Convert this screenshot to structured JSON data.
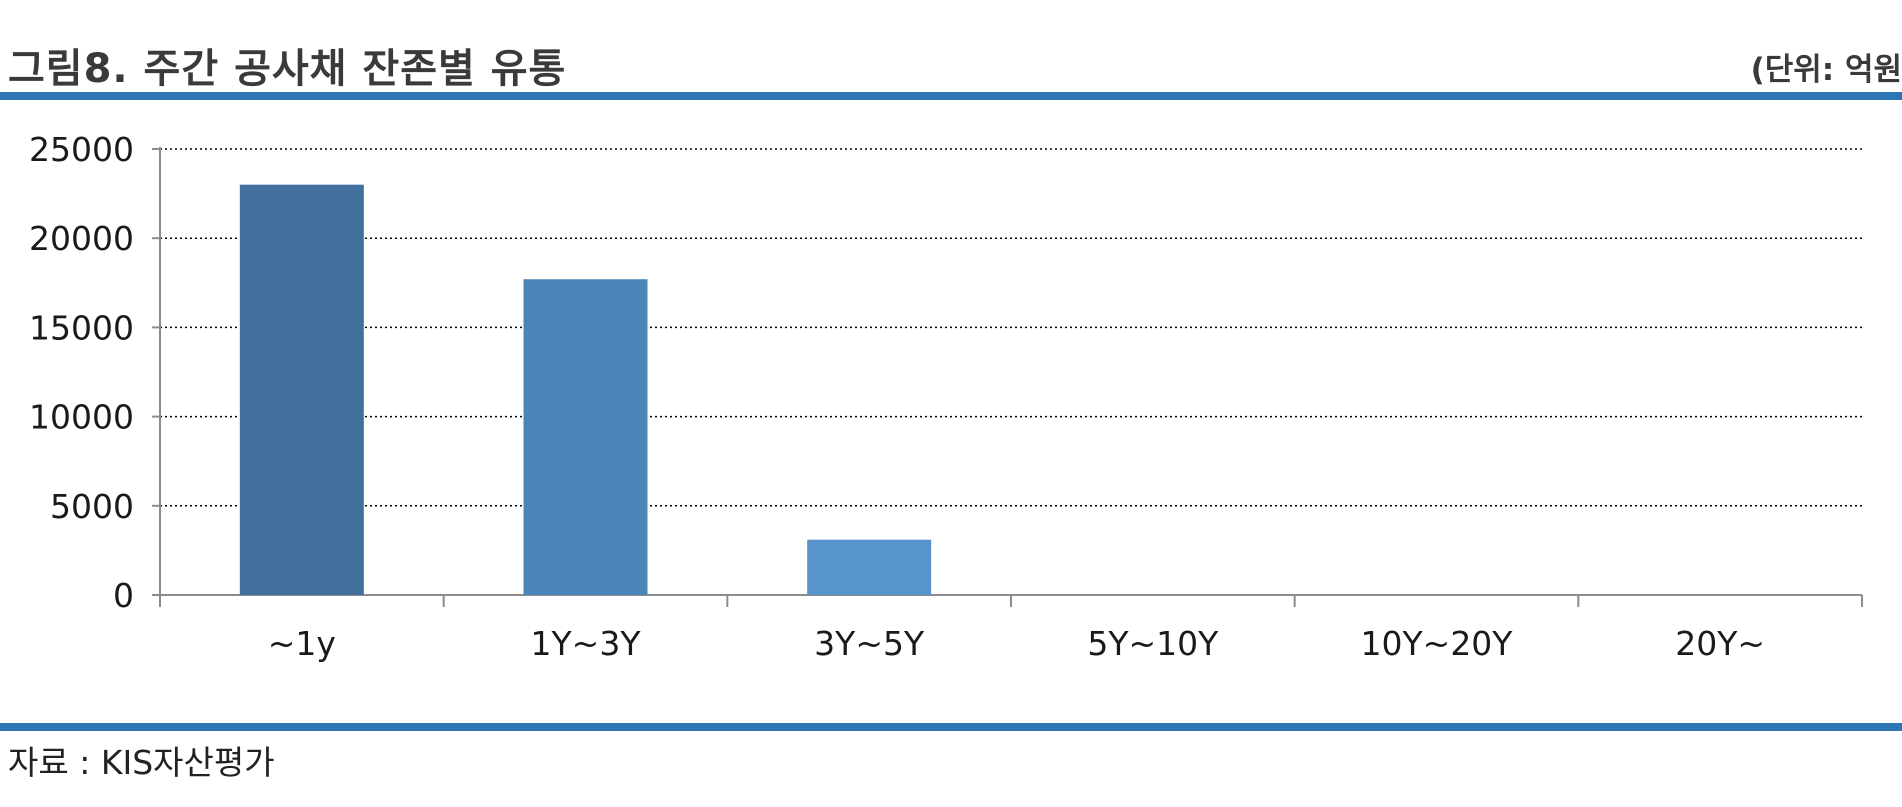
{
  "header": {
    "title": "그림8. 주간 공사채 잔존별 유통",
    "unit": "(단위: 억원"
  },
  "footer": {
    "source": "자료 : KIS자산평가"
  },
  "colors": {
    "accent_rule": "#2e75b6",
    "bars": [
      "#41709c",
      "#4a85b8",
      "#5794cb",
      "#5794cb",
      "#5794cb",
      "#5794cb"
    ],
    "grid": "#000000",
    "axis": "#8c8c8c"
  },
  "chart_data": {
    "type": "bar",
    "categories": [
      "~1y",
      "1Y~3Y",
      "3Y~5Y",
      "5Y~10Y",
      "10Y~20Y",
      "20Y~"
    ],
    "values": [
      23000,
      17700,
      3100,
      0,
      0,
      0
    ],
    "ylim": [
      0,
      25000
    ],
    "yticks": [
      0,
      5000,
      10000,
      15000,
      20000,
      25000
    ],
    "grid": "dotted horizontal",
    "legend": "none"
  }
}
